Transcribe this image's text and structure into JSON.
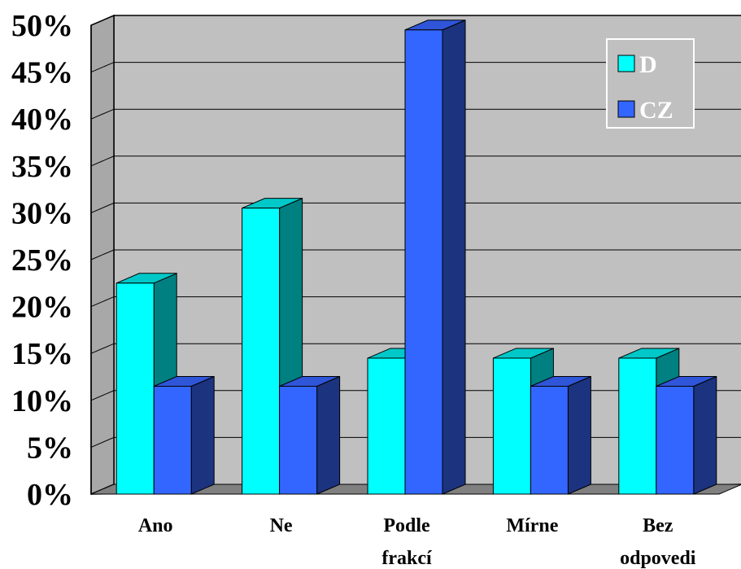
{
  "chart_data": {
    "type": "bar",
    "categories": [
      "Ano",
      "Ne",
      "Podle frakcí",
      "Mírne",
      "Bez odpovedi"
    ],
    "series": [
      {
        "name": "D",
        "values": [
          22.5,
          30.5,
          14.5,
          14.5,
          14.5
        ]
      },
      {
        "name": "CZ",
        "values": [
          11.5,
          11.5,
          49.5,
          11.5,
          11.5
        ]
      }
    ],
    "ylim": [
      0,
      50
    ],
    "yticks": [
      "0%",
      "5%",
      "10%",
      "15%",
      "20%",
      "25%",
      "30%",
      "35%",
      "40%",
      "45%",
      "50%"
    ],
    "legend_position": "top-right",
    "grid": true,
    "style": "3d-clustered",
    "colors": {
      "D": {
        "front": "#00ffff",
        "top": "#00c8c8",
        "side": "#008080"
      },
      "CZ": {
        "front": "#3366ff",
        "top": "#2f55d8",
        "side": "#1c3380"
      },
      "wall": "#c0c0c0",
      "floor": "#808080"
    }
  }
}
